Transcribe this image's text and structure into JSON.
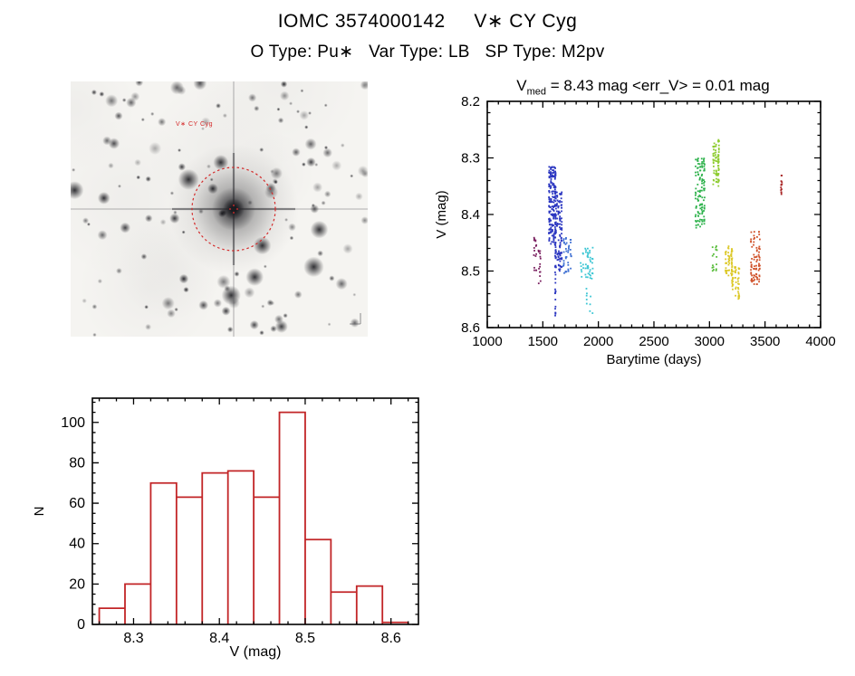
{
  "page": {
    "title_line1": "IOMC 3574000142     V∗ CY Cyg",
    "title_line2": "O Type: Pu∗   Var Type: LB   SP Type: M2pv"
  },
  "finding_chart": {
    "label": "V∗ CY Cyg",
    "circle_color": "#d42a2a"
  },
  "chart_data": [
    {
      "type": "scatter",
      "name": "light_curve",
      "title_v": "V",
      "title_sub": "med",
      "title_rest": " = 8.43 mag <err_V> = 0.01 mag",
      "xlabel": "Barytime (days)",
      "ylabel": "V (mag)",
      "xlim": [
        1000,
        4000
      ],
      "ylim_top": 8.2,
      "ylim_bottom": 8.6,
      "y_inverted": true,
      "xticks": [
        1000,
        1500,
        2000,
        2500,
        3000,
        3500,
        4000
      ],
      "yticks": [
        8.2,
        8.3,
        8.4,
        8.5,
        8.6
      ],
      "x_minor": 100,
      "y_minor": 0.02,
      "grid": false,
      "clusters": [
        {
          "color": "#7a2060",
          "x": [
            1422,
            1438
          ],
          "v": [
            8.44,
            8.5
          ],
          "n": 16,
          "cols": 2
        },
        {
          "color": "#7a2060",
          "x": [
            1462,
            1476
          ],
          "v": [
            8.455,
            8.525
          ],
          "n": 14,
          "cols": 2
        },
        {
          "color": "#2b36c0",
          "x": [
            1558,
            1612
          ],
          "v": [
            8.315,
            8.455
          ],
          "n": 170,
          "cols": 5
        },
        {
          "color": "#2b36c0",
          "x": [
            1616,
            1668
          ],
          "v": [
            8.36,
            8.5
          ],
          "n": 130,
          "cols": 5
        },
        {
          "color": "#2b36c0",
          "x": [
            1608,
            1618
          ],
          "v": [
            8.44,
            8.585
          ],
          "n": 28,
          "cols": 1
        },
        {
          "color": "#3c6ed2",
          "x": [
            1688,
            1752
          ],
          "v": [
            8.44,
            8.505
          ],
          "n": 40,
          "cols": 4
        },
        {
          "color": "#3cc6d4",
          "x": [
            1845,
            1945
          ],
          "v": [
            8.455,
            8.515
          ],
          "n": 48,
          "cols": 6
        },
        {
          "color": "#3cc6d4",
          "x": [
            1898,
            1950
          ],
          "v": [
            8.525,
            8.575
          ],
          "n": 9,
          "cols": 3
        },
        {
          "color": "#2eb24c",
          "x": [
            2878,
            2952
          ],
          "v": [
            8.3,
            8.425
          ],
          "n": 120,
          "cols": 5
        },
        {
          "color": "#8ecc30",
          "x": [
            3038,
            3082
          ],
          "v": [
            8.265,
            8.35
          ],
          "n": 80,
          "cols": 3
        },
        {
          "color": "#56bc38",
          "x": [
            3032,
            3062
          ],
          "v": [
            8.455,
            8.5
          ],
          "n": 16,
          "cols": 2
        },
        {
          "color": "#dcc828",
          "x": [
            3148,
            3200
          ],
          "v": [
            8.455,
            8.51
          ],
          "n": 55,
          "cols": 3
        },
        {
          "color": "#dcc828",
          "x": [
            3205,
            3262
          ],
          "v": [
            8.49,
            8.55
          ],
          "n": 55,
          "cols": 3
        },
        {
          "color": "#d0522a",
          "x": [
            3378,
            3448
          ],
          "v": [
            8.43,
            8.525
          ],
          "n": 80,
          "cols": 4
        },
        {
          "color": "#a82424",
          "x": [
            3638,
            3658
          ],
          "v": [
            8.33,
            8.365
          ],
          "n": 14,
          "cols": 1
        }
      ]
    },
    {
      "type": "bar",
      "name": "v_histogram",
      "xlabel": "V (mag)",
      "ylabel": "N",
      "xlim": [
        8.252,
        8.632
      ],
      "ylim": [
        0,
        112
      ],
      "xticks": [
        8.3,
        8.4,
        8.5,
        8.6
      ],
      "yticks": [
        0,
        20,
        40,
        60,
        80,
        100
      ],
      "x_minor": 0.02,
      "y_minor": 5,
      "bin_start": 8.26,
      "bin_width": 0.03,
      "values": [
        8,
        20,
        70,
        63,
        75,
        76,
        63,
        105,
        42,
        16,
        19,
        1
      ],
      "bar_color": "#c22527",
      "grid": false
    }
  ]
}
